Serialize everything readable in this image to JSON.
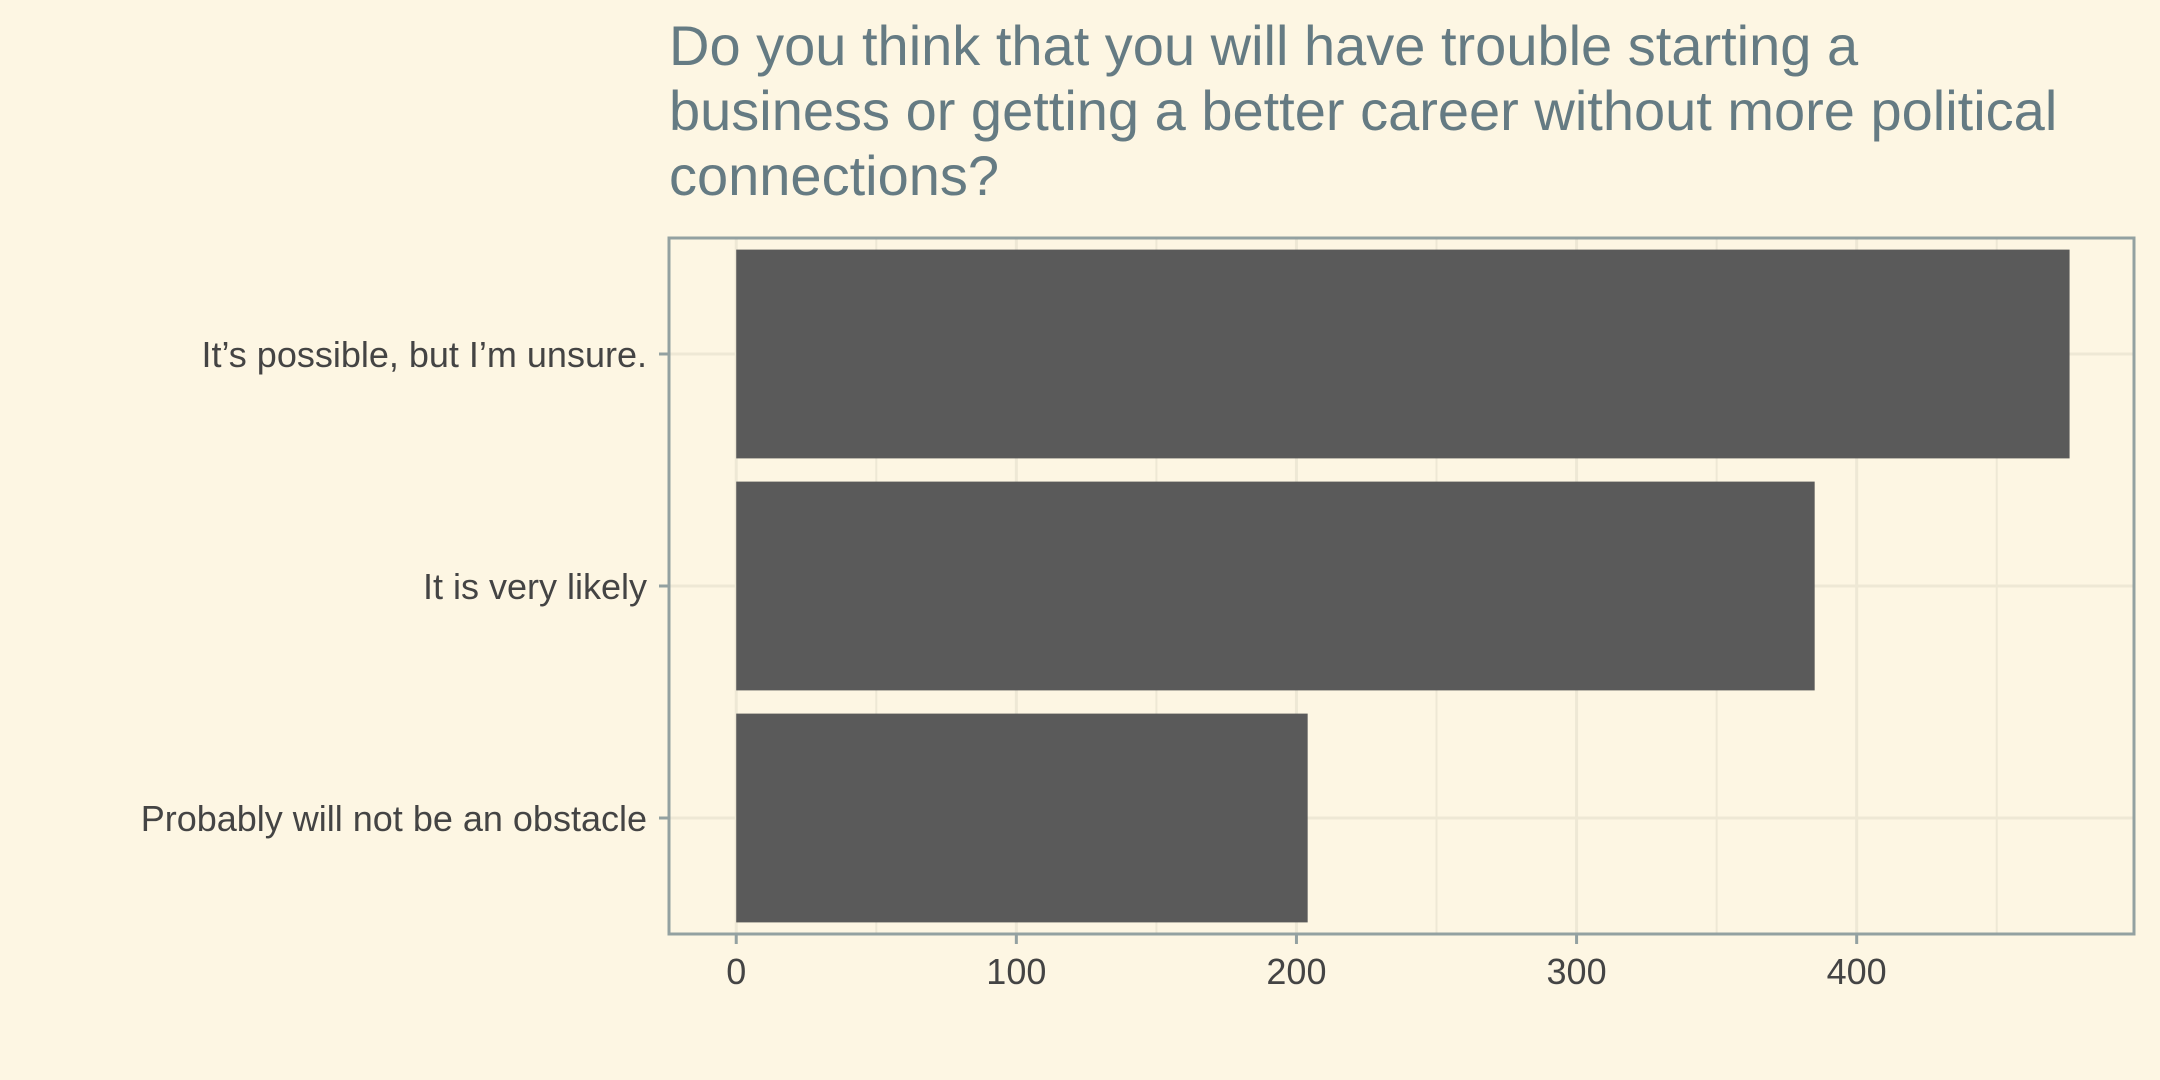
{
  "chart_data": {
    "type": "bar",
    "orientation": "horizontal",
    "title_lines": [
      "Do you think that you will have trouble starting a",
      "business or getting a better career without more political",
      "connections?"
    ],
    "categories": [
      "It’s possible, but I’m unsure.",
      "It is very likely",
      "Probably will not be an obstacle"
    ],
    "values": [
      476,
      385,
      204
    ],
    "xlim": [
      -24,
      499
    ],
    "xticks": [
      0,
      100,
      200,
      300,
      400
    ],
    "xtick_labels": [
      "0",
      "100",
      "200",
      "300",
      "400"
    ],
    "xlabel": "",
    "ylabel": "",
    "grid": true,
    "colors": {
      "background": "#fdf6e3",
      "bar": "#5a5a5a",
      "grid": "#eee8d5",
      "axis": "#93a1a1",
      "title": "#657b83",
      "text": "#444444"
    }
  }
}
